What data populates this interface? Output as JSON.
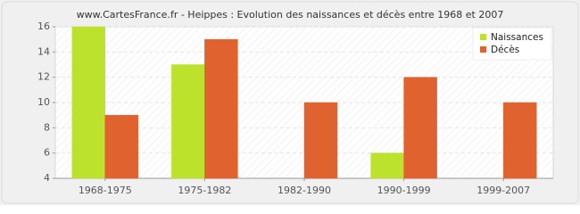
{
  "chart_data": {
    "type": "bar",
    "title": "www.CartesFrance.fr - Heippes : Evolution des naissances et décès entre 1968 et 2007",
    "categories": [
      "1968-1975",
      "1975-1982",
      "1982-1990",
      "1990-1999",
      "1999-2007"
    ],
    "series": [
      {
        "name": "Naissances",
        "color": "#bde22e",
        "values": [
          16,
          13,
          4,
          6,
          4
        ]
      },
      {
        "name": "Décès",
        "color": "#e0632f",
        "values": [
          9,
          15,
          10,
          12,
          10
        ]
      }
    ],
    "ylim": [
      4,
      16
    ],
    "yticks": [
      4,
      6,
      8,
      10,
      12,
      14,
      16
    ],
    "grid": true,
    "legend": "top-right"
  }
}
